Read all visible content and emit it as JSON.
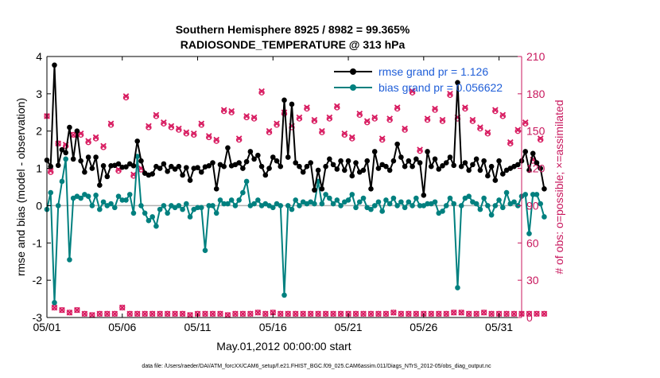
{
  "chart_data": {
    "type": "line",
    "title": "Southern Hemisphere 8925 / 8982 = 99.365%",
    "subtitle": "RADIOSONDE_TEMPERATURE @ 313 hPa",
    "xlabel": "May.01,2012 00:00:00 start",
    "ylabel": "rmse and bias (model - observation)",
    "ylabel_right": "# of obs: o=possible; ×=assimilated",
    "footer": "data file: /Users/raeder/DAI/ATM_forcXX/CAM6_setup/f.e21.FHIST_BGC.f09_025.CAM6assim.011/Diags_NTrS_2012-05/obs_diag_output.nc",
    "xlim": [
      0,
      31.5
    ],
    "ylim": [
      -3,
      4
    ],
    "ylim_right": [
      0,
      210
    ],
    "x_tick_labels": [
      "05/01",
      "05/06",
      "05/11",
      "05/16",
      "05/21",
      "05/26",
      "05/31"
    ],
    "x_tick_values": [
      0,
      5,
      10,
      15,
      20,
      25,
      30
    ],
    "y_tick_labels": [
      "-3",
      "-2",
      "-1",
      "0",
      "1",
      "2",
      "3",
      "4"
    ],
    "y_tick_values": [
      -3,
      -2,
      -1,
      0,
      1,
      2,
      3,
      4
    ],
    "y_right_tick_labels": [
      "0",
      "30",
      "60",
      "90",
      "120",
      "150",
      "180",
      "210"
    ],
    "y_right_tick_values": [
      0,
      30,
      60,
      90,
      120,
      150,
      180,
      210
    ],
    "x_step": 0.25,
    "series": [
      {
        "name": "rmse grand pr = 1.126",
        "color": "#000000",
        "marker": "circle",
        "axis": "left",
        "values": [
          1.22,
          1.05,
          3.77,
          1.08,
          1.5,
          1.42,
          2.1,
          1.25,
          2.0,
          1.2,
          0.9,
          1.3,
          1.0,
          1.3,
          0.55,
          1.07,
          0.78,
          1.07,
          1.08,
          1.12,
          1.03,
          1.04,
          1.12,
          1.07,
          1.73,
          1.2,
          0.87,
          0.82,
          0.85,
          1.05,
          1.0,
          1.12,
          0.92,
          1.05,
          0.98,
          1.05,
          0.82,
          1.02,
          0.68,
          1.0,
          1.02,
          0.9,
          1.04,
          1.07,
          1.15,
          0.45,
          1.1,
          1.05,
          1.55,
          1.07,
          1.1,
          1.15,
          1.0,
          1.18,
          1.45,
          1.25,
          1.35,
          1.05,
          0.82,
          1.0,
          1.3,
          1.2,
          1.05,
          2.83,
          1.3,
          2.72,
          1.15,
          1.05,
          0.9,
          1.05,
          1.15,
          0.42,
          0.95,
          0.45,
          1.05,
          1.25,
          1.1,
          0.98,
          1.2,
          0.95,
          1.2,
          0.8,
          1.15,
          0.9,
          0.95,
          1.2,
          0.45,
          1.45,
          1.0,
          1.1,
          1.05,
          0.95,
          1.2,
          1.65,
          1.3,
          1.05,
          1.2,
          1.05,
          1.25,
          1.15,
          0.28,
          1.45,
          1.05,
          1.25,
          0.98,
          1.07,
          1.15,
          1.3,
          1.08,
          3.3,
          1.05,
          1.15,
          0.95,
          1.1,
          1.25,
          0.95,
          1.2,
          0.8,
          1.05,
          0.68,
          1.2,
          0.85,
          0.95,
          1.0,
          1.05,
          1.1,
          1.2,
          1.45,
          0.95,
          1.4,
          1.15,
          1.0,
          0.45
        ]
      },
      {
        "name": "bias grand pr = 0.056622",
        "color": "#00807f",
        "marker": "circle",
        "axis": "left",
        "values": [
          -0.1,
          0.35,
          -2.6,
          0.0,
          0.65,
          1.25,
          -1.45,
          0.2,
          0.25,
          0.2,
          0.3,
          0.25,
          0.0,
          0.28,
          -0.1,
          0.1,
          0.0,
          0.05,
          -0.05,
          0.25,
          0.15,
          0.15,
          0.3,
          -0.2,
          1.32,
          0.0,
          -0.2,
          -0.4,
          -0.3,
          -0.55,
          -0.1,
          0.0,
          -0.2,
          0.0,
          -0.05,
          0.0,
          -0.1,
          0.05,
          -0.3,
          -0.1,
          -0.05,
          -0.05,
          -1.2,
          0.0,
          0.0,
          -0.2,
          0.15,
          0.05,
          0.05,
          0.15,
          0.0,
          0.15,
          0.35,
          0.65,
          0.0,
          0.05,
          0.15,
          0.0,
          0.05,
          0.0,
          -0.05,
          0.05,
          0.0,
          -2.4,
          0.0,
          -0.1,
          0.15,
          0.0,
          0.1,
          0.05,
          0.1,
          0.05,
          0.65,
          0.05,
          0.3,
          0.2,
          0.05,
          0.15,
          0.0,
          0.1,
          0.15,
          0.3,
          -0.05,
          0.1,
          0.2,
          -0.05,
          -0.1,
          0.0,
          0.1,
          -0.15,
          0.15,
          0.05,
          0.2,
          0.0,
          0.1,
          -0.05,
          0.1,
          0.0,
          0.2,
          0.0,
          0.0,
          0.05,
          0.05,
          0.1,
          -0.2,
          -0.15,
          0.0,
          0.2,
          0.05,
          -2.2,
          0.0,
          0.2,
          0.25,
          0.1,
          0.05,
          -0.1,
          0.2,
          0.0,
          -0.25,
          0.0,
          0.15,
          -0.05,
          0.35,
          0.05,
          0.1,
          0.0,
          0.25,
          0.3,
          -0.75,
          0.3,
          0.3,
          0.05,
          -0.3
        ]
      }
    ],
    "obs_count_possible": [
      162,
      117,
      8,
      140,
      6,
      138,
      4,
      147,
      6,
      147,
      3,
      141,
      2,
      144,
      3,
      137,
      3,
      155,
      3,
      118,
      8,
      177,
      3,
      114,
      3,
      119,
      3,
      153,
      3,
      162,
      3,
      156,
      3,
      153,
      3,
      151,
      3,
      148,
      2,
      147,
      3,
      155,
      3,
      145,
      3,
      142,
      3,
      166,
      2,
      165,
      3,
      143,
      3,
      161,
      3,
      160,
      4,
      181,
      3,
      149,
      4,
      155,
      3,
      164,
      3,
      153,
      3,
      160,
      3,
      168,
      3,
      158,
      3,
      149,
      3,
      160,
      3,
      169,
      3,
      147,
      3,
      144,
      3,
      163,
      3,
      157,
      3,
      160,
      3,
      143,
      3,
      159,
      4,
      168,
      3,
      151,
      3,
      181,
      3,
      134,
      3,
      159,
      3,
      167,
      3,
      158,
      3,
      179,
      4,
      160,
      4,
      168,
      3,
      158,
      3,
      152,
      4,
      148,
      3,
      166,
      3,
      162,
      3,
      140,
      3,
      150,
      3,
      156,
      3,
      126,
      3,
      143,
      3
    ],
    "obs_count_assimilated": [
      162,
      118,
      8,
      140,
      6,
      139,
      4,
      147,
      6,
      148,
      3,
      142,
      2,
      145,
      3,
      138,
      3,
      156,
      3,
      119,
      8,
      178,
      3,
      115,
      3,
      120,
      3,
      154,
      3,
      163,
      3,
      157,
      3,
      154,
      3,
      152,
      3,
      149,
      2,
      148,
      3,
      156,
      3,
      146,
      3,
      143,
      3,
      167,
      2,
      166,
      3,
      144,
      3,
      162,
      3,
      161,
      4,
      182,
      3,
      150,
      4,
      156,
      3,
      165,
      3,
      154,
      3,
      161,
      3,
      169,
      3,
      159,
      3,
      150,
      3,
      161,
      3,
      170,
      3,
      148,
      3,
      145,
      3,
      164,
      3,
      158,
      3,
      161,
      3,
      144,
      3,
      160,
      4,
      169,
      3,
      152,
      3,
      182,
      3,
      135,
      3,
      160,
      3,
      168,
      3,
      159,
      3,
      180,
      4,
      161,
      4,
      169,
      3,
      159,
      3,
      153,
      4,
      149,
      3,
      167,
      3,
      163,
      3,
      141,
      3,
      151,
      3,
      157,
      3,
      127,
      3,
      144,
      3
    ],
    "obs_color": "#d81b60",
    "zero_line_color": "#b0b0b0"
  }
}
